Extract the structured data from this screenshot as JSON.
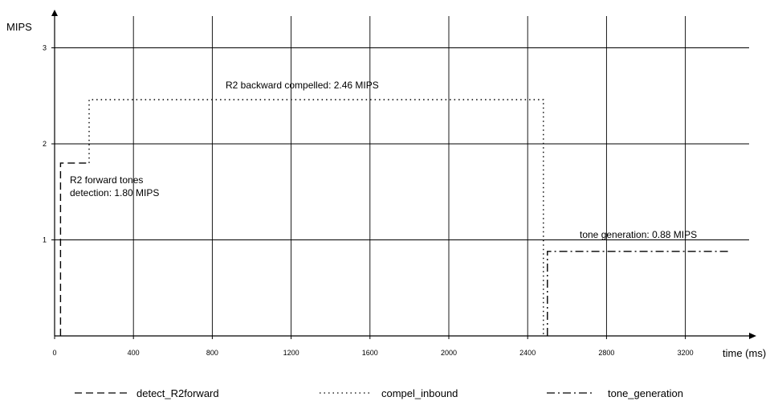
{
  "chart_data": {
    "type": "line",
    "ylabel": "MIPS",
    "xlabel": "time (ms)",
    "xlim": [
      0,
      3500
    ],
    "ylim": [
      0,
      3
    ],
    "x_ticks": [
      0,
      400,
      800,
      1200,
      1600,
      2000,
      2400,
      2800,
      3200
    ],
    "y_ticks": [
      1,
      2,
      3
    ],
    "x_tick_labels": [
      "0",
      "400",
      "800",
      "1200",
      "1600",
      "2000",
      "2400",
      "2800",
      "3200"
    ],
    "y_tick_labels": [
      "1",
      "2",
      "3"
    ],
    "grid": true,
    "legend_placement": "bottom",
    "series": [
      {
        "name": "detect_R2forward",
        "style": "dashed",
        "points": [
          [
            30,
            0
          ],
          [
            30,
            1.8
          ],
          [
            175,
            1.8
          ]
        ]
      },
      {
        "name": "compel_inbound",
        "style": "dotted",
        "points": [
          [
            175,
            1.8
          ],
          [
            175,
            2.46
          ],
          [
            2480,
            2.46
          ],
          [
            2480,
            0
          ]
        ]
      },
      {
        "name": "tone_generation",
        "style": "dash-dot",
        "points": [
          [
            2500,
            0
          ],
          [
            2500,
            0.88
          ],
          [
            3420,
            0.88
          ]
        ]
      }
    ],
    "annotations": [
      {
        "text": "R2 backward compelled: 2.46 MIPS"
      },
      {
        "lines": [
          "R2 forward tones",
          "detection: 1.80 MIPS"
        ]
      },
      {
        "text": "tone generation: 0.88 MIPS"
      }
    ]
  }
}
